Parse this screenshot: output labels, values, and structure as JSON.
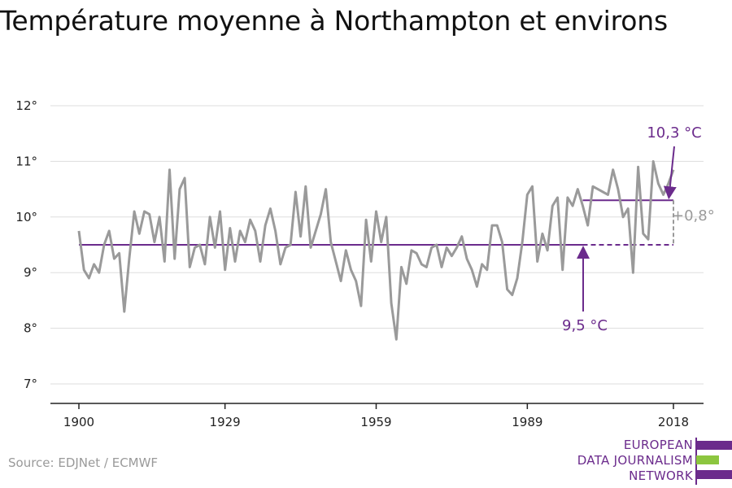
{
  "title": "Température moyenne à Northampton et environs",
  "source": "Source: EDJNet / ECMWF",
  "logo": {
    "lines": [
      "EUROPEAN",
      "DATA JOURNALISM",
      "NETWORK"
    ],
    "bar_colors": [
      "#6b2b8c",
      "#8cc63f",
      "#6b2b8c"
    ]
  },
  "colors": {
    "series": "#9a9a9a",
    "accent": "#6b2b8c",
    "annotation_gray": "#9a9a9a",
    "grid": "#dddddd"
  },
  "chart_data": {
    "type": "line",
    "title": "Température moyenne à Northampton et environs",
    "xlabel": "",
    "ylabel": "",
    "xlim": [
      1900,
      2018
    ],
    "ylim": [
      7,
      12
    ],
    "x_ticks": [
      1900,
      1929,
      1959,
      1989,
      2018
    ],
    "y_ticks": [
      7,
      8,
      9,
      10,
      11,
      12
    ],
    "y_tick_labels": [
      "7°",
      "8°",
      "9°",
      "10°",
      "11°",
      "12°"
    ],
    "grid": true,
    "x_start": 1900,
    "series": [
      {
        "values": [
          9.75,
          9.05,
          8.9,
          9.15,
          9.0,
          9.5,
          9.75,
          9.25,
          9.35,
          8.3,
          9.25,
          10.1,
          9.7,
          10.1,
          10.05,
          9.55,
          10.0,
          9.2,
          10.85,
          9.25,
          10.5,
          10.7,
          9.1,
          9.45,
          9.5,
          9.15,
          10.0,
          9.45,
          10.1,
          9.05,
          9.8,
          9.2,
          9.75,
          9.55,
          9.95,
          9.75,
          9.2,
          9.85,
          10.15,
          9.75,
          9.15,
          9.45,
          9.5,
          10.45,
          9.65,
          10.55,
          9.45,
          9.75,
          10.05,
          10.5,
          9.55,
          9.2,
          8.85,
          9.4,
          9.05,
          8.85,
          8.4,
          9.95,
          9.2,
          10.1,
          9.55,
          10.0,
          8.45,
          7.8,
          9.1,
          8.8,
          9.4,
          9.35,
          9.15,
          9.1,
          9.45,
          9.5,
          9.1,
          9.45,
          9.3,
          9.45,
          9.65,
          9.25,
          9.05,
          8.75,
          9.15,
          9.05,
          9.85,
          9.85,
          9.55,
          8.7,
          8.6,
          8.9,
          9.55,
          10.4,
          10.55,
          9.2,
          9.7,
          9.4,
          10.2,
          10.35,
          9.05,
          10.35,
          10.2,
          10.5,
          10.2,
          9.85,
          10.55,
          10.5,
          10.45,
          10.4,
          10.85,
          10.5,
          10.0,
          10.15,
          9.0,
          10.9,
          9.7,
          9.6,
          11.0,
          10.6,
          10.4,
          10.6,
          10.85
        ]
      }
    ],
    "reference_lines": [
      {
        "label": "9,5 °C",
        "value": 9.5,
        "x_from": 1900,
        "x_to": 2018
      },
      {
        "label": "10,3 °C",
        "value": 10.3,
        "x_from": 2000,
        "x_to": 2018
      }
    ],
    "annotations": {
      "ref_label": "9,5 °C",
      "recent_label": "10,3 °C",
      "diff_label": "+0,8°"
    }
  }
}
